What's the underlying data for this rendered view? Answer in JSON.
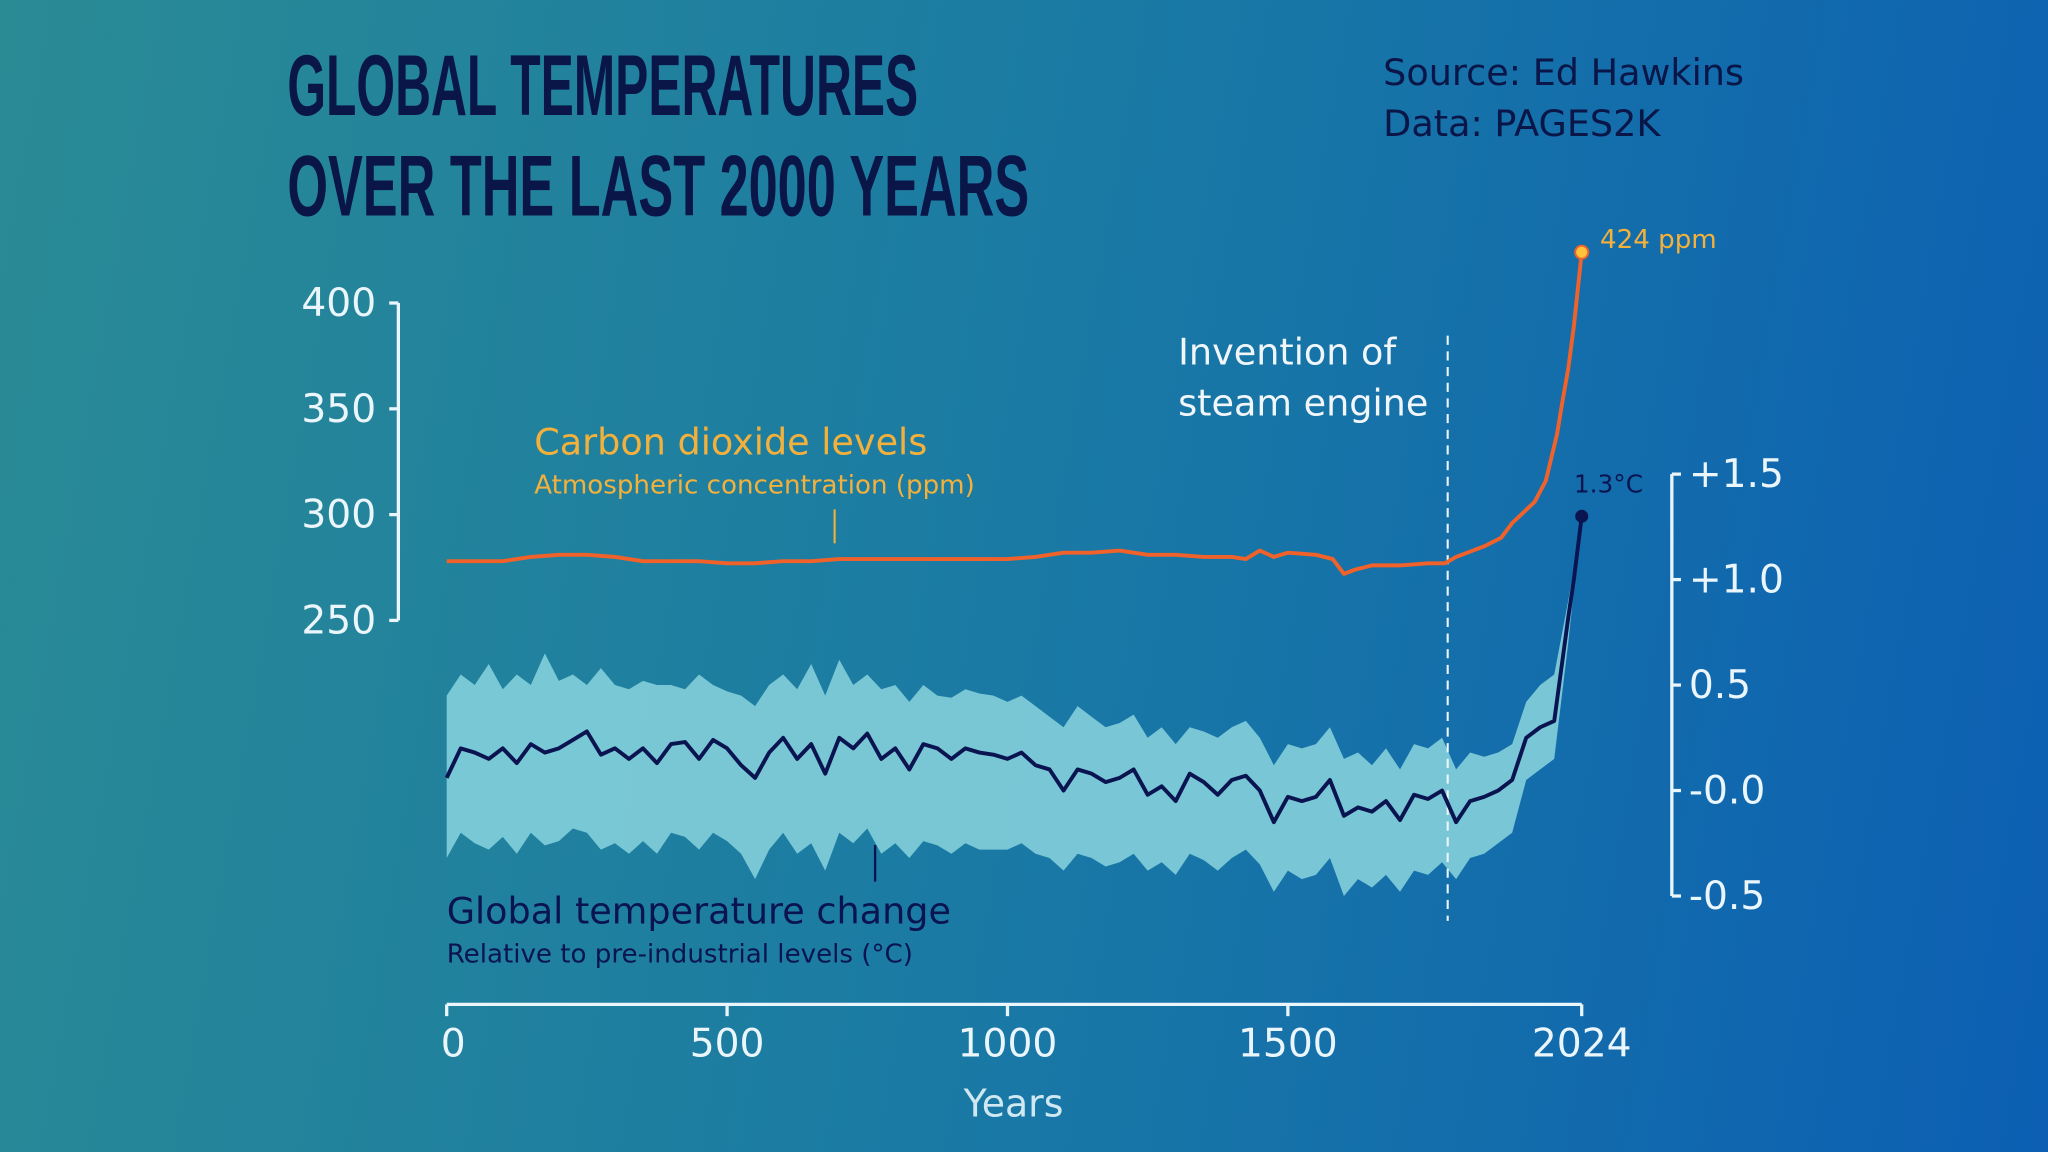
{
  "header": {
    "title_line1": "GLOBAL TEMPERATURES",
    "title_line2": "OVER THE LAST 2000 YEARS",
    "source": "Source: Ed Hawkins",
    "data_credit": "Data: PAGES2K"
  },
  "colors": {
    "co2_line": "#f0622a",
    "co2_label": "#f3b13c",
    "temp_line": "#0a1450",
    "temp_band": "#7ecbd8",
    "axis": "#eaf6fb"
  },
  "chart_data": {
    "type": "line",
    "xlabel": "Years",
    "xlim": [
      0,
      2024
    ],
    "x_ticks": [
      "0",
      "500",
      "1000",
      "1500",
      "2024"
    ],
    "x_tick_values": [
      0,
      500,
      1000,
      1500,
      2024
    ],
    "left_axis": {
      "ylim": [
        250,
        400
      ],
      "ticks": [
        "400",
        "350",
        "300",
        "250"
      ],
      "tick_values": [
        400,
        350,
        300,
        250
      ]
    },
    "right_axis": {
      "ylim": [
        -0.5,
        1.5
      ],
      "ticks": [
        "+1.5",
        "+1.0",
        "0.5",
        "-0.0",
        "-0.5"
      ],
      "tick_values": [
        1.5,
        1.0,
        0.5,
        0.0,
        -0.5
      ]
    },
    "annotations": {
      "steam_engine_year": 1785,
      "steam_engine_line1": "Invention of",
      "steam_engine_line2": "steam engine",
      "co2_end_label": "424 ppm",
      "temp_end_label": "1.3°C"
    },
    "co2": {
      "name": "Carbon dioxide levels",
      "subtitle": "Atmospheric concentration (ppm)",
      "axis": "left",
      "x": [
        0,
        50,
        100,
        150,
        200,
        250,
        300,
        350,
        400,
        450,
        500,
        550,
        600,
        650,
        700,
        750,
        800,
        850,
        900,
        950,
        1000,
        1050,
        1100,
        1150,
        1200,
        1250,
        1300,
        1350,
        1400,
        1425,
        1450,
        1475,
        1500,
        1550,
        1580,
        1600,
        1620,
        1650,
        1700,
        1750,
        1780,
        1800,
        1820,
        1850,
        1880,
        1900,
        1920,
        1940,
        1960,
        1980,
        1990,
        2000,
        2010,
        2024
      ],
      "values": [
        278,
        278,
        278,
        280,
        281,
        281,
        280,
        278,
        278,
        278,
        277,
        277,
        278,
        278,
        279,
        279,
        279,
        279,
        279,
        279,
        279,
        280,
        282,
        282,
        283,
        281,
        281,
        280,
        280,
        279,
        283,
        280,
        282,
        281,
        279,
        272,
        274,
        276,
        276,
        277,
        277,
        280,
        282,
        285,
        289,
        296,
        301,
        306,
        316,
        338,
        354,
        369,
        389,
        424
      ]
    },
    "temperature": {
      "name": "Global temperature change",
      "subtitle": "Relative to pre-industrial levels (°C)",
      "axis": "right",
      "x": [
        0,
        25,
        50,
        75,
        100,
        125,
        150,
        175,
        200,
        225,
        250,
        275,
        300,
        325,
        350,
        375,
        400,
        425,
        450,
        475,
        500,
        525,
        550,
        575,
        600,
        625,
        650,
        675,
        700,
        725,
        750,
        775,
        800,
        825,
        850,
        875,
        900,
        925,
        950,
        975,
        1000,
        1025,
        1050,
        1075,
        1100,
        1125,
        1150,
        1175,
        1200,
        1225,
        1250,
        1275,
        1300,
        1325,
        1350,
        1375,
        1400,
        1425,
        1450,
        1475,
        1500,
        1525,
        1550,
        1575,
        1600,
        1625,
        1650,
        1675,
        1700,
        1725,
        1750,
        1775,
        1800,
        1825,
        1850,
        1875,
        1900,
        1925,
        1950,
        1975,
        2000,
        2010,
        2024
      ],
      "values": [
        0.06,
        0.2,
        0.18,
        0.15,
        0.2,
        0.13,
        0.22,
        0.18,
        0.2,
        0.24,
        0.28,
        0.17,
        0.2,
        0.15,
        0.2,
        0.13,
        0.22,
        0.23,
        0.15,
        0.24,
        0.2,
        0.12,
        0.06,
        0.18,
        0.25,
        0.15,
        0.22,
        0.08,
        0.25,
        0.2,
        0.27,
        0.15,
        0.2,
        0.1,
        0.22,
        0.2,
        0.15,
        0.2,
        0.18,
        0.17,
        0.15,
        0.18,
        0.12,
        0.1,
        0.0,
        0.1,
        0.08,
        0.04,
        0.06,
        0.1,
        -0.02,
        0.02,
        -0.05,
        0.08,
        0.04,
        -0.02,
        0.05,
        0.07,
        0.0,
        -0.15,
        -0.03,
        -0.05,
        -0.03,
        0.05,
        -0.12,
        -0.08,
        -0.1,
        -0.05,
        -0.14,
        -0.02,
        -0.04,
        0.0,
        -0.15,
        -0.05,
        -0.03,
        0.0,
        0.05,
        0.25,
        0.3,
        0.33,
        0.82,
        1.0,
        1.3
      ],
      "band_upper": [
        0.45,
        0.55,
        0.5,
        0.6,
        0.48,
        0.55,
        0.5,
        0.65,
        0.52,
        0.55,
        0.5,
        0.58,
        0.5,
        0.48,
        0.52,
        0.5,
        0.5,
        0.48,
        0.55,
        0.5,
        0.47,
        0.45,
        0.4,
        0.5,
        0.55,
        0.48,
        0.6,
        0.45,
        0.62,
        0.5,
        0.55,
        0.48,
        0.5,
        0.42,
        0.5,
        0.45,
        0.44,
        0.48,
        0.46,
        0.45,
        0.42,
        0.45,
        0.4,
        0.35,
        0.3,
        0.4,
        0.35,
        0.3,
        0.32,
        0.36,
        0.25,
        0.3,
        0.22,
        0.3,
        0.28,
        0.25,
        0.3,
        0.33,
        0.25,
        0.12,
        0.22,
        0.2,
        0.22,
        0.3,
        0.15,
        0.18,
        0.12,
        0.2,
        0.1,
        0.22,
        0.2,
        0.25,
        0.1,
        0.18,
        0.16,
        0.18,
        0.22,
        0.42,
        0.5,
        0.55,
        0.9,
        1.05,
        1.3
      ],
      "band_lower": [
        -0.32,
        -0.2,
        -0.25,
        -0.28,
        -0.22,
        -0.3,
        -0.2,
        -0.26,
        -0.24,
        -0.18,
        -0.2,
        -0.28,
        -0.25,
        -0.3,
        -0.24,
        -0.3,
        -0.2,
        -0.22,
        -0.28,
        -0.2,
        -0.24,
        -0.3,
        -0.42,
        -0.28,
        -0.2,
        -0.3,
        -0.25,
        -0.38,
        -0.2,
        -0.25,
        -0.18,
        -0.3,
        -0.25,
        -0.32,
        -0.24,
        -0.26,
        -0.3,
        -0.25,
        -0.28,
        -0.28,
        -0.28,
        -0.25,
        -0.3,
        -0.32,
        -0.38,
        -0.3,
        -0.32,
        -0.36,
        -0.34,
        -0.3,
        -0.38,
        -0.34,
        -0.4,
        -0.3,
        -0.33,
        -0.38,
        -0.32,
        -0.28,
        -0.35,
        -0.48,
        -0.38,
        -0.42,
        -0.4,
        -0.32,
        -0.5,
        -0.42,
        -0.46,
        -0.4,
        -0.48,
        -0.38,
        -0.4,
        -0.34,
        -0.42,
        -0.32,
        -0.3,
        -0.25,
        -0.2,
        0.05,
        0.1,
        0.15,
        0.7,
        0.95,
        1.3
      ]
    }
  }
}
